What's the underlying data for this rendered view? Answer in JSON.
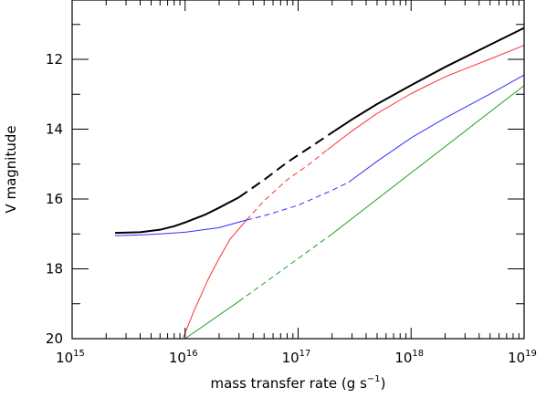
{
  "chart_data": {
    "type": "line",
    "xlabel": "mass transfer rate (g s",
    "xlabel_sup": "−1",
    "xlabel_tail": ")",
    "ylabel": "V magnitude",
    "x_scale": "log",
    "xlim": [
      1000000000000000.0,
      1e+19
    ],
    "ylim": [
      20,
      10.3
    ],
    "y_inverted": true,
    "x_ticks": [
      {
        "value": 1000000000000000.0,
        "base": "10",
        "exp": "15"
      },
      {
        "value": 1e+16,
        "base": "10",
        "exp": "16"
      },
      {
        "value": 1e+17,
        "base": "10",
        "exp": "17"
      },
      {
        "value": 1e+18,
        "base": "10",
        "exp": "18"
      },
      {
        "value": 1e+19,
        "base": "10",
        "exp": "19"
      }
    ],
    "y_ticks": [
      12,
      14,
      16,
      18,
      20
    ],
    "series": [
      {
        "color": "#000000",
        "width": 2,
        "segments": [
          {
            "style": "solid",
            "points": [
              [
                2400000000000000.0,
                16.97
              ],
              [
                4000000000000000.0,
                16.95
              ],
              [
                6000000000000000.0,
                16.88
              ],
              [
                8000000000000000.0,
                16.78
              ],
              [
                1e+16,
                16.67
              ],
              [
                1.5e+16,
                16.45
              ],
              [
                2e+16,
                16.25
              ],
              [
                3e+16,
                15.95
              ]
            ]
          },
          {
            "style": "dashed",
            "points": [
              [
                3e+16,
                15.95
              ],
              [
                5e+16,
                15.45
              ],
              [
                8e+16,
                14.95
              ],
              [
                1.3e+17,
                14.5
              ],
              [
                2.1e+17,
                14.05
              ]
            ]
          },
          {
            "style": "solid",
            "points": [
              [
                2.1e+17,
                14.05
              ],
              [
                3e+17,
                13.72
              ],
              [
                5e+17,
                13.28
              ],
              [
                1e+18,
                12.74
              ],
              [
                2e+18,
                12.22
              ],
              [
                5e+18,
                11.58
              ],
              [
                1e+19,
                11.1
              ]
            ]
          }
        ]
      },
      {
        "color": "#ff3030",
        "width": 1,
        "segments": [
          {
            "style": "solid",
            "points": [
              [
                9600000000000000.0,
                19.98
              ],
              [
                1.2e+16,
                19.2
              ],
              [
                1.6e+16,
                18.3
              ],
              [
                2e+16,
                17.7
              ],
              [
                2.5e+16,
                17.15
              ],
              [
                3.5e+16,
                16.6
              ]
            ]
          },
          {
            "style": "dashed",
            "points": [
              [
                3.5e+16,
                16.6
              ],
              [
                5e+16,
                16.05
              ],
              [
                8e+16,
                15.45
              ],
              [
                1.2e+17,
                15.05
              ],
              [
                1.8e+17,
                14.6
              ]
            ]
          },
          {
            "style": "solid",
            "points": [
              [
                1.8e+17,
                14.6
              ],
              [
                3e+17,
                14.05
              ],
              [
                5e+17,
                13.55
              ],
              [
                1e+18,
                12.98
              ],
              [
                2e+18,
                12.5
              ],
              [
                5e+18,
                11.99
              ],
              [
                1e+19,
                11.6
              ]
            ]
          }
        ]
      },
      {
        "color": "#3030ff",
        "width": 1,
        "segments": [
          {
            "style": "solid",
            "points": [
              [
                2400000000000000.0,
                17.05
              ],
              [
                4000000000000000.0,
                17.03
              ],
              [
                6000000000000000.0,
                17.0
              ],
              [
                1e+16,
                16.95
              ],
              [
                2e+16,
                16.82
              ],
              [
                3.5e+16,
                16.6
              ]
            ]
          },
          {
            "style": "dashed",
            "points": [
              [
                3.5e+16,
                16.6
              ],
              [
                5e+16,
                16.48
              ],
              [
                1e+17,
                16.18
              ],
              [
                2e+17,
                15.75
              ],
              [
                2.8e+17,
                15.52
              ]
            ]
          },
          {
            "style": "solid",
            "points": [
              [
                2.8e+17,
                15.52
              ],
              [
                5e+17,
                14.92
              ],
              [
                1e+18,
                14.25
              ],
              [
                2e+18,
                13.68
              ],
              [
                5e+18,
                12.99
              ],
              [
                1e+19,
                12.45
              ]
            ]
          }
        ]
      },
      {
        "color": "#20a020",
        "width": 1,
        "segments": [
          {
            "style": "solid",
            "points": [
              [
                1e+16,
                20.0
              ],
              [
                3e+16,
                18.93
              ]
            ]
          },
          {
            "style": "dashed",
            "points": [
              [
                3e+16,
                18.93
              ],
              [
                2e+17,
                17.0
              ]
            ]
          },
          {
            "style": "solid",
            "points": [
              [
                2e+17,
                17.0
              ],
              [
                1e+19,
                12.75
              ]
            ]
          }
        ]
      }
    ]
  }
}
